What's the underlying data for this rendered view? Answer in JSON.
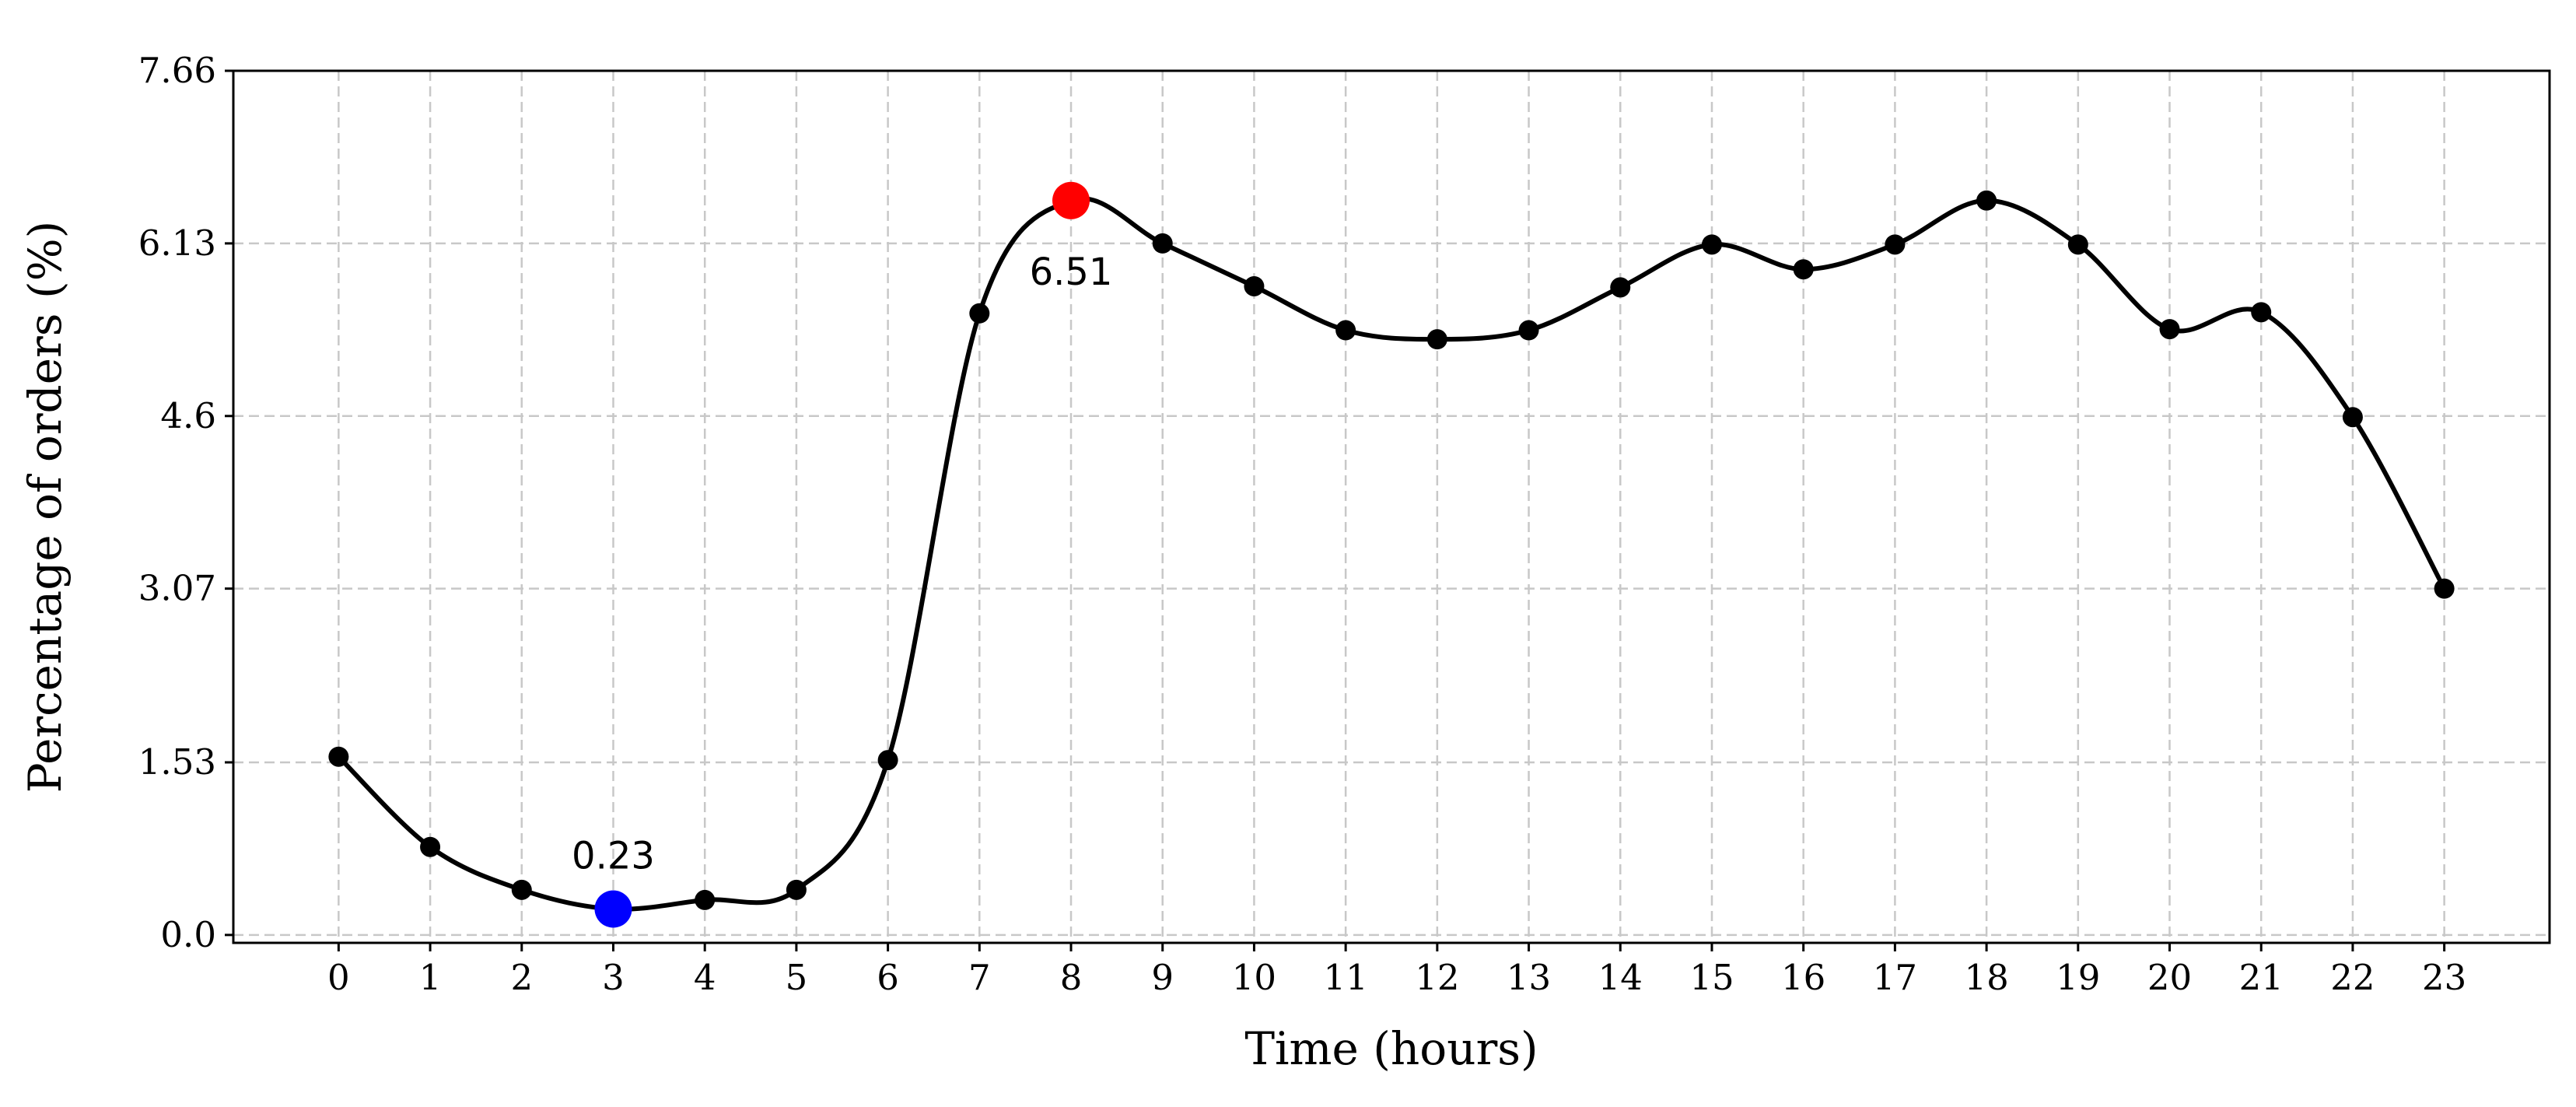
{
  "chart_data": {
    "type": "line",
    "title": "",
    "xlabel": "Time (hours)",
    "ylabel": "Percentage of orders (%)",
    "x": [
      0,
      1,
      2,
      3,
      4,
      5,
      6,
      7,
      8,
      9,
      10,
      11,
      12,
      13,
      14,
      15,
      16,
      17,
      18,
      19,
      20,
      21,
      22,
      23
    ],
    "y": [
      1.58,
      0.78,
      0.4,
      0.23,
      0.31,
      0.4,
      1.55,
      5.51,
      6.51,
      6.13,
      5.75,
      5.36,
      5.28,
      5.36,
      5.74,
      6.12,
      5.9,
      6.12,
      6.51,
      6.12,
      5.37,
      5.52,
      4.59,
      3.07
    ],
    "xlim": [
      -1.15,
      24.15
    ],
    "ylim": [
      -0.07,
      7.66
    ],
    "xticks": [
      "0",
      "1",
      "2",
      "3",
      "4",
      "5",
      "6",
      "7",
      "8",
      "9",
      "10",
      "11",
      "12",
      "13",
      "14",
      "15",
      "16",
      "17",
      "18",
      "19",
      "20",
      "21",
      "22",
      "23"
    ],
    "yticks": [
      0.0,
      1.53,
      3.07,
      4.6,
      6.13,
      7.66
    ],
    "ytick_labels": [
      "0.0",
      "1.53",
      "3.07",
      "4.6",
      "6.13",
      "7.66"
    ],
    "grid": true,
    "line_color": "#000000",
    "highlights": [
      {
        "x": 8,
        "y": 6.51,
        "color": "#ff0000",
        "label": "6.51",
        "label_position": "below"
      },
      {
        "x": 3,
        "y": 0.23,
        "color": "#0000ff",
        "label": "0.23",
        "label_position": "above"
      }
    ]
  }
}
